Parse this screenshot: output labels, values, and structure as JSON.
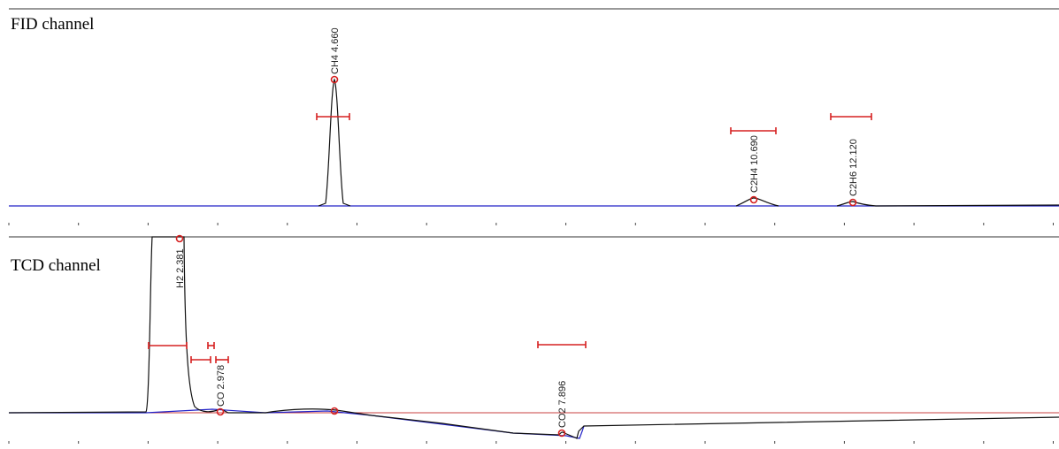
{
  "panels": [
    {
      "label": "FID channel",
      "peaks": [
        {
          "label": "CH4 4.660"
        },
        {
          "label": "C2H4 10.690"
        },
        {
          "label": "C2H6 12.120"
        }
      ]
    },
    {
      "label": "TCD channel",
      "peaks": [
        {
          "label": "H2 2.381"
        },
        {
          "label": "CO 2.978"
        },
        {
          "label": "CO2 7.896"
        }
      ]
    }
  ]
}
